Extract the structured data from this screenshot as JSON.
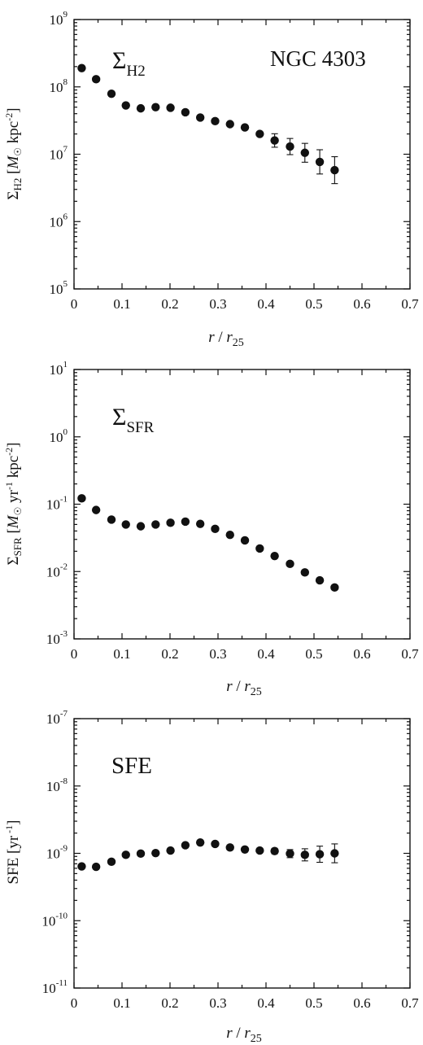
{
  "chart_data": [
    {
      "type": "scatter",
      "id": "h2",
      "annotations": {
        "main": "Σ",
        "sub": "H2",
        "right": "NGC 4303"
      },
      "ylabel": {
        "sym": "Σ",
        "sub": "H2",
        "mid": " [",
        "italic": "M",
        "sun": "☉",
        "unit": " kpc",
        "sup": "-2",
        "end": "]"
      },
      "xlabel": {
        "italic_r": "r",
        "slash": " / ",
        "italic_r2": "r",
        "sub": "25"
      },
      "scale": "log",
      "xlim": [
        0,
        0.7
      ],
      "ylim_exp": [
        5,
        9
      ],
      "x_ticks": [
        "0",
        "0.1",
        "0.2",
        "0.3",
        "0.4",
        "0.5",
        "0.6",
        "0.7"
      ],
      "y_ticks": [
        {
          "base": "10",
          "exp": "5"
        },
        {
          "base": "10",
          "exp": "6"
        },
        {
          "base": "10",
          "exp": "7"
        },
        {
          "base": "10",
          "exp": "8"
        },
        {
          "base": "10",
          "exp": "9"
        }
      ],
      "points": [
        {
          "x": 0.016,
          "y": 190000000.0,
          "err": 0
        },
        {
          "x": 0.046,
          "y": 130000000.0,
          "err": 0
        },
        {
          "x": 0.078,
          "y": 79000000.0,
          "err": 0
        },
        {
          "x": 0.108,
          "y": 53000000.0,
          "err": 0
        },
        {
          "x": 0.139,
          "y": 48000000.0,
          "err": 0
        },
        {
          "x": 0.17,
          "y": 50000000.0,
          "err": 0
        },
        {
          "x": 0.201,
          "y": 49000000.0,
          "err": 0
        },
        {
          "x": 0.232,
          "y": 42000000.0,
          "err": 0
        },
        {
          "x": 0.263,
          "y": 35000000.0,
          "err": 0
        },
        {
          "x": 0.294,
          "y": 31000000.0,
          "err": 0
        },
        {
          "x": 0.325,
          "y": 28000000.0,
          "err": 0
        },
        {
          "x": 0.356,
          "y": 25000000.0,
          "err": 0
        },
        {
          "x": 0.387,
          "y": 20000000.0,
          "err": 0
        },
        {
          "x": 0.418,
          "y": 16000000.0,
          "err": 0.1
        },
        {
          "x": 0.45,
          "y": 13000000.0,
          "err": 0.12
        },
        {
          "x": 0.481,
          "y": 10500000.0,
          "err": 0.14
        },
        {
          "x": 0.512,
          "y": 7700000.0,
          "err": 0.18
        },
        {
          "x": 0.543,
          "y": 5800000.0,
          "err": 0.2
        }
      ]
    },
    {
      "type": "scatter",
      "id": "sfr",
      "annotations": {
        "main": "Σ",
        "sub": "SFR"
      },
      "ylabel": {
        "sym": "Σ",
        "sub": "SFR",
        "mid": " [",
        "italic": "M",
        "sun": "☉",
        "unit": " yr",
        "sup": "-1",
        "unit2": " kpc",
        "sup2": "-2",
        "end": "]"
      },
      "xlabel": {
        "italic_r": "r",
        "slash": " / ",
        "italic_r2": "r",
        "sub": "25"
      },
      "scale": "log",
      "xlim": [
        0,
        0.7
      ],
      "ylim_exp": [
        -3,
        1
      ],
      "x_ticks": [
        "0",
        "0.1",
        "0.2",
        "0.3",
        "0.4",
        "0.5",
        "0.6",
        "0.7"
      ],
      "y_ticks": [
        {
          "base": "10",
          "exp": "-3"
        },
        {
          "base": "10",
          "exp": "-2"
        },
        {
          "base": "10",
          "exp": "-1"
        },
        {
          "base": "10",
          "exp": "0"
        },
        {
          "base": "10",
          "exp": "1"
        }
      ],
      "points": [
        {
          "x": 0.016,
          "y": 0.122,
          "err": 0
        },
        {
          "x": 0.046,
          "y": 0.082,
          "err": 0
        },
        {
          "x": 0.078,
          "y": 0.059,
          "err": 0
        },
        {
          "x": 0.108,
          "y": 0.05,
          "err": 0
        },
        {
          "x": 0.139,
          "y": 0.047,
          "err": 0
        },
        {
          "x": 0.17,
          "y": 0.05,
          "err": 0
        },
        {
          "x": 0.201,
          "y": 0.053,
          "err": 0
        },
        {
          "x": 0.232,
          "y": 0.055,
          "err": 0
        },
        {
          "x": 0.263,
          "y": 0.051,
          "err": 0
        },
        {
          "x": 0.294,
          "y": 0.043,
          "err": 0
        },
        {
          "x": 0.325,
          "y": 0.035,
          "err": 0
        },
        {
          "x": 0.356,
          "y": 0.029,
          "err": 0
        },
        {
          "x": 0.387,
          "y": 0.022,
          "err": 0
        },
        {
          "x": 0.418,
          "y": 0.017,
          "err": 0
        },
        {
          "x": 0.45,
          "y": 0.013,
          "err": 0
        },
        {
          "x": 0.481,
          "y": 0.0097,
          "err": 0
        },
        {
          "x": 0.512,
          "y": 0.0074,
          "err": 0
        },
        {
          "x": 0.543,
          "y": 0.0058,
          "err": 0
        }
      ]
    },
    {
      "type": "scatter",
      "id": "sfe",
      "annotations": {
        "main": "SFE"
      },
      "ylabel": {
        "sym": "SFE",
        "mid": "  [yr",
        "sup": " -1",
        "end": "]"
      },
      "xlabel": {
        "italic_r": "r",
        "slash": " / ",
        "italic_r2": "r",
        "sub": "25"
      },
      "scale": "log",
      "xlim": [
        0,
        0.7
      ],
      "ylim_exp": [
        -11,
        -7
      ],
      "x_ticks": [
        "0",
        "0.1",
        "0.2",
        "0.3",
        "0.4",
        "0.5",
        "0.6",
        "0.7"
      ],
      "y_ticks": [
        {
          "base": "10",
          "exp": "-11"
        },
        {
          "base": "10",
          "exp": "-10"
        },
        {
          "base": "10",
          "exp": "-9"
        },
        {
          "base": "10",
          "exp": "-8"
        },
        {
          "base": "10",
          "exp": "-7"
        }
      ],
      "points": [
        {
          "x": 0.016,
          "y": 6.4e-10,
          "err": 0
        },
        {
          "x": 0.046,
          "y": 6.3e-10,
          "err": 0
        },
        {
          "x": 0.078,
          "y": 7.5e-10,
          "err": 0
        },
        {
          "x": 0.108,
          "y": 9.5e-10,
          "err": 0
        },
        {
          "x": 0.139,
          "y": 9.9e-10,
          "err": 0
        },
        {
          "x": 0.17,
          "y": 1.01e-09,
          "err": 0
        },
        {
          "x": 0.201,
          "y": 1.1e-09,
          "err": 0
        },
        {
          "x": 0.232,
          "y": 1.32e-09,
          "err": 0
        },
        {
          "x": 0.263,
          "y": 1.45e-09,
          "err": 0
        },
        {
          "x": 0.294,
          "y": 1.38e-09,
          "err": 0
        },
        {
          "x": 0.325,
          "y": 1.22e-09,
          "err": 0
        },
        {
          "x": 0.356,
          "y": 1.14e-09,
          "err": 0
        },
        {
          "x": 0.387,
          "y": 1.1e-09,
          "err": 0
        },
        {
          "x": 0.418,
          "y": 1.08e-09,
          "err": 0.04
        },
        {
          "x": 0.45,
          "y": 9.9e-10,
          "err": 0.06
        },
        {
          "x": 0.481,
          "y": 9.5e-10,
          "err": 0.09
        },
        {
          "x": 0.512,
          "y": 9.7e-10,
          "err": 0.12
        },
        {
          "x": 0.543,
          "y": 1e-09,
          "err": 0.14
        }
      ]
    }
  ]
}
